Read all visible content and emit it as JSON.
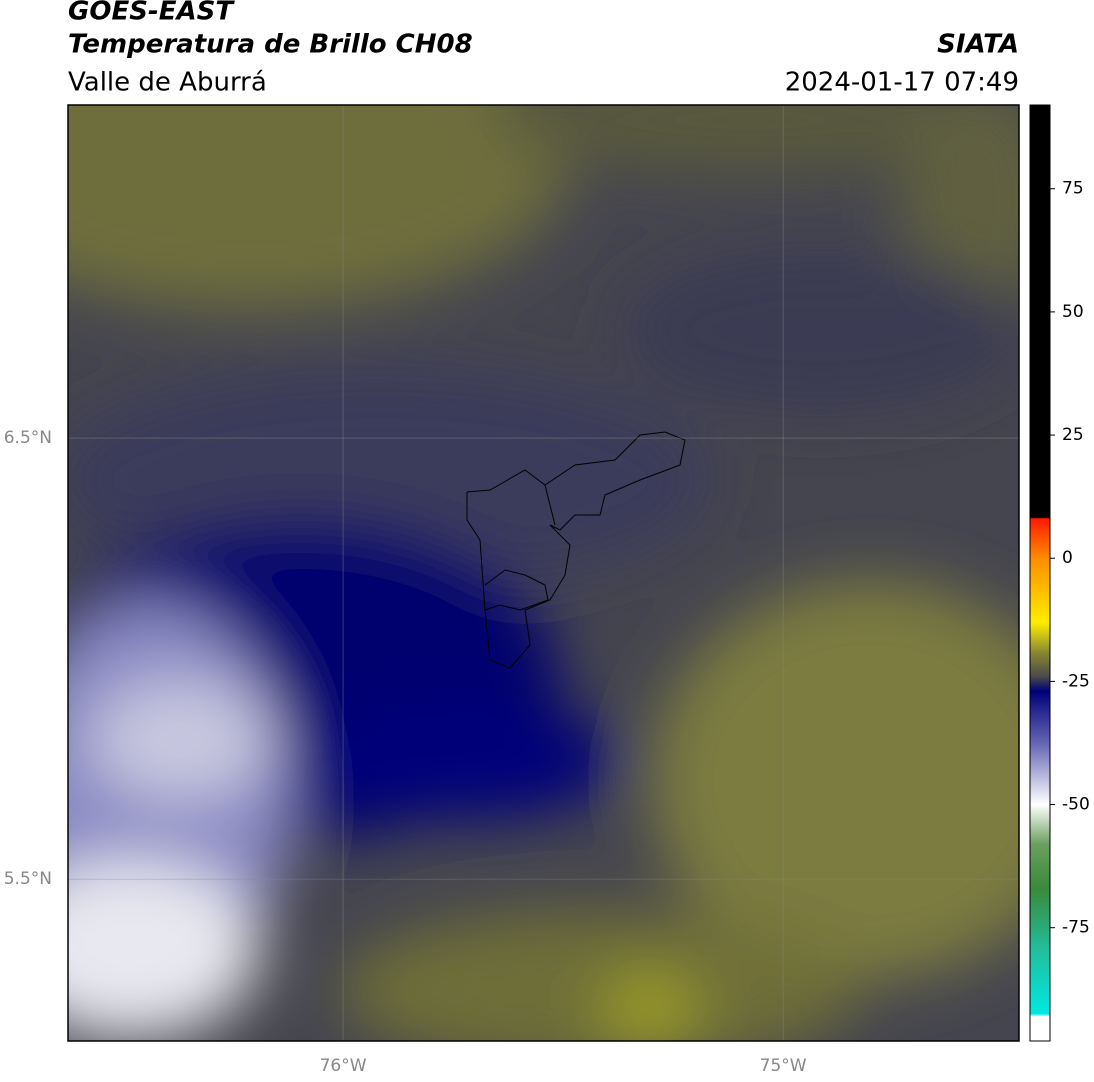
{
  "header": {
    "title": "GOES-EAST",
    "subtitle": "Temperatura de Brillo CH08",
    "source": "SIATA",
    "region": "Valle de Aburrá",
    "datetime": "2024-01-17 07:49"
  },
  "map": {
    "xlim": [
      -76.625,
      -74.464
    ],
    "ylim": [
      5.133,
      7.255
    ],
    "xticks": [
      {
        "value": -76,
        "label": "76°W"
      },
      {
        "value": -75,
        "label": "75°W"
      }
    ],
    "yticks": [
      {
        "value": 6.5,
        "label": "6.5°N"
      },
      {
        "value": 5.5,
        "label": "5.5°N"
      }
    ],
    "grid": true
  },
  "colorbar": {
    "lim": [
      -98,
      92
    ],
    "ticks": [
      75,
      50,
      25,
      0,
      -25,
      -50,
      -75
    ],
    "stops": [
      {
        "value": 92,
        "color": "#000000"
      },
      {
        "value": 8.3,
        "color": "#000000"
      },
      {
        "value": 8,
        "color": "#ff1a00"
      },
      {
        "value": 0,
        "color": "#ff8c00"
      },
      {
        "value": -13,
        "color": "#ffee00"
      },
      {
        "value": -19,
        "color": "#8a8a30"
      },
      {
        "value": -24,
        "color": "#4a4a4a"
      },
      {
        "value": -27,
        "color": "#00007a"
      },
      {
        "value": -38,
        "color": "#6a6ab8"
      },
      {
        "value": -50,
        "color": "#ffffff"
      },
      {
        "value": -58,
        "color": "#6aa060"
      },
      {
        "value": -67,
        "color": "#3a8a3a"
      },
      {
        "value": -80,
        "color": "#20c0a0"
      },
      {
        "value": -92.5,
        "color": "#00e8e0"
      },
      {
        "value": -93,
        "color": "#ffffff"
      },
      {
        "value": -98,
        "color": "#ffffff"
      }
    ]
  }
}
